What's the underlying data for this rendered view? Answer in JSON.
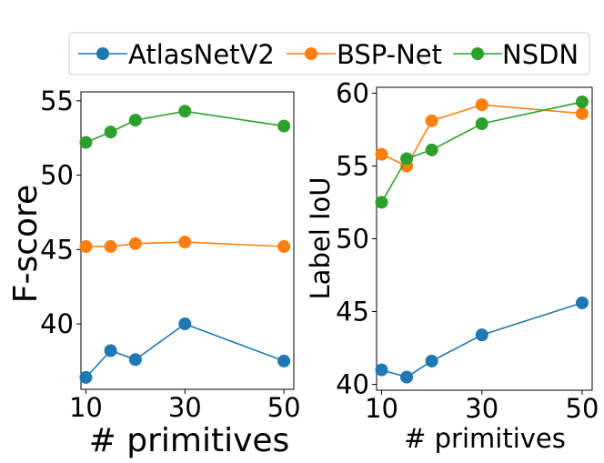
{
  "legend": {
    "entries": [
      {
        "label": "AtlasNetV2",
        "color": "#1f77b4"
      },
      {
        "label": "BSP-Net",
        "color": "#ff7f0e"
      },
      {
        "label": "NSDN",
        "color": "#2ca02c"
      }
    ]
  },
  "chart_data": [
    {
      "type": "line",
      "title": "",
      "xlabel": "# primitives",
      "ylabel": "F-score",
      "x": [
        10,
        15,
        20,
        30,
        50
      ],
      "xticks": [
        10,
        30,
        50
      ],
      "yticks": [
        40,
        45,
        50,
        55
      ],
      "xlim": [
        9,
        52
      ],
      "ylim": [
        35.6,
        55.6
      ],
      "series": [
        {
          "name": "AtlasNetV2",
          "color": "#1f77b4",
          "values": [
            36.4,
            38.2,
            37.6,
            40.0,
            37.5
          ]
        },
        {
          "name": "BSP-Net",
          "color": "#ff7f0e",
          "values": [
            45.2,
            45.2,
            45.4,
            45.5,
            45.2
          ]
        },
        {
          "name": "NSDN",
          "color": "#2ca02c",
          "values": [
            52.2,
            52.9,
            53.7,
            54.3,
            53.3
          ]
        }
      ]
    },
    {
      "type": "line",
      "title": "",
      "xlabel": "# primitives",
      "ylabel": "Label IoU",
      "x": [
        10,
        15,
        20,
        30,
        50
      ],
      "xticks": [
        10,
        30,
        50
      ],
      "yticks": [
        40,
        45,
        50,
        55,
        60
      ],
      "xlim": [
        9,
        52
      ],
      "ylim": [
        39.6,
        60.4
      ],
      "series": [
        {
          "name": "AtlasNetV2",
          "color": "#1f77b4",
          "values": [
            41.0,
            40.5,
            41.6,
            43.4,
            45.6
          ]
        },
        {
          "name": "BSP-Net",
          "color": "#ff7f0e",
          "values": [
            55.8,
            55.0,
            58.1,
            59.2,
            58.6
          ]
        },
        {
          "name": "NSDN",
          "color": "#2ca02c",
          "values": [
            52.5,
            55.5,
            56.1,
            57.9,
            59.4
          ]
        }
      ]
    }
  ]
}
